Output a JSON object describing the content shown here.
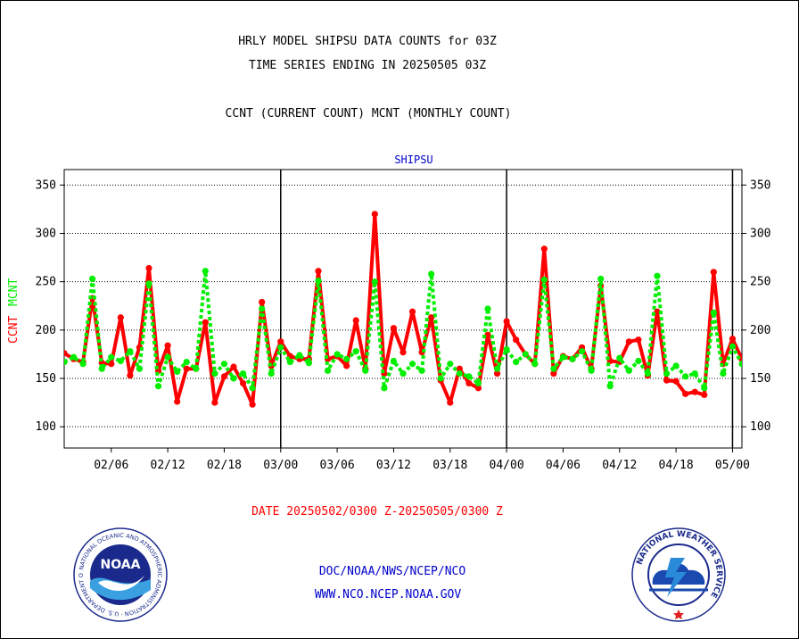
{
  "header": {
    "title_line1": "HRLY MODEL SHIPSU DATA COUNTS for 03Z",
    "title_line2": "TIME SERIES ENDING IN 20250505 03Z",
    "subtitle": "CCNT (CURRENT COUNT) MCNT (MONTHLY COUNT)"
  },
  "footer": {
    "date_range": "DATE 20250502/0300 Z-20250505/0300 Z",
    "org_line": "DOC/NOAA/NWS/NCEP/NCO",
    "url_line": "WWW.NCO.NCEP.NOAA.GOV"
  },
  "logos": {
    "noaa_text": "NOAA",
    "noaa_ring": "NATIONAL OCEANIC AND ATMOSPHERIC ADMINISTRATION · U.S. DEPARTMENT OF COMMERCE",
    "nws_ring": "NATIONAL WEATHER SERVICE"
  },
  "chart_data": {
    "type": "line",
    "title": "SHIPSU",
    "ylabel_left": [
      {
        "text": "CCNT",
        "color": "#ff0000"
      },
      {
        "text": "MCNT",
        "color": "#00ee00"
      }
    ],
    "ylim": [
      78,
      366
    ],
    "yticks": [
      100,
      150,
      200,
      250,
      300,
      350
    ],
    "grid": true,
    "x_tick_labels": [
      {
        "label": "02/06",
        "x": 5
      },
      {
        "label": "02/12",
        "x": 11
      },
      {
        "label": "02/18",
        "x": 17
      },
      {
        "label": "03/00",
        "x": 23
      },
      {
        "label": "03/06",
        "x": 29
      },
      {
        "label": "03/12",
        "x": 35
      },
      {
        "label": "03/18",
        "x": 41
      },
      {
        "label": "04/00",
        "x": 47
      },
      {
        "label": "04/06",
        "x": 53
      },
      {
        "label": "04/12",
        "x": 59
      },
      {
        "label": "04/18",
        "x": 65
      },
      {
        "label": "05/00",
        "x": 71
      }
    ],
    "day_boundaries": [
      23,
      47,
      71
    ],
    "x_range": [
      0,
      72
    ],
    "series": [
      {
        "name": "CCNT",
        "color": "#ff0000",
        "values": [
          176,
          170,
          167,
          233,
          166,
          165,
          213,
          153,
          182,
          264,
          158,
          184,
          126,
          160,
          160,
          208,
          125,
          152,
          162,
          145,
          123,
          229,
          163,
          188,
          173,
          170,
          170,
          261,
          170,
          173,
          163,
          210,
          160,
          320,
          155,
          202,
          177,
          219,
          177,
          213,
          148,
          125,
          160,
          145,
          140,
          195,
          155,
          209,
          190,
          175,
          165,
          284,
          155,
          173,
          170,
          182,
          160,
          246,
          168,
          167,
          188,
          190,
          153,
          219,
          148,
          147,
          134,
          136,
          133,
          260,
          165,
          191,
          170
        ]
      },
      {
        "name": "MCNT",
        "color": "#00ee00",
        "values": [
          167,
          172,
          165,
          253,
          160,
          172,
          168,
          178,
          160,
          248,
          142,
          172,
          157,
          167,
          160,
          261,
          155,
          165,
          150,
          155,
          140,
          222,
          155,
          182,
          167,
          174,
          166,
          251,
          158,
          175,
          170,
          178,
          158,
          250,
          140,
          168,
          155,
          165,
          158,
          258,
          150,
          165,
          155,
          152,
          145,
          222,
          160,
          180,
          167,
          175,
          165,
          252,
          160,
          172,
          170,
          178,
          158,
          253,
          142,
          171,
          158,
          168,
          155,
          256,
          155,
          163,
          152,
          155,
          140,
          218,
          155,
          183,
          165
        ]
      }
    ]
  }
}
